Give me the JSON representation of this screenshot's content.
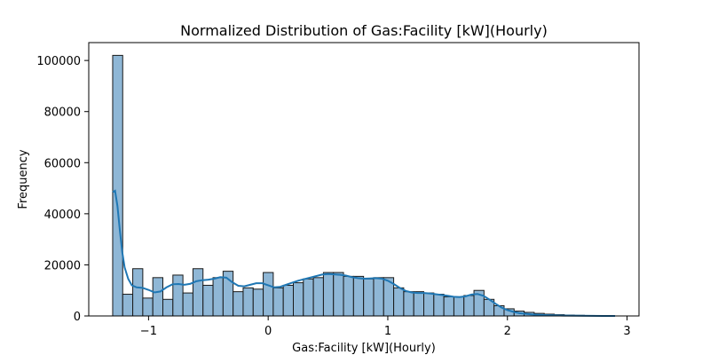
{
  "chart_data": {
    "type": "bar",
    "title": "Normalized Distribution of Gas:Facility [kW](Hourly)",
    "xlabel": "Gas:Facility [kW](Hourly)",
    "ylabel": "Frequency",
    "xlim": [
      -1.5,
      3.1
    ],
    "ylim": [
      0,
      107000
    ],
    "x_ticks": [
      -1,
      0,
      1,
      2,
      3
    ],
    "x_tick_labels": [
      "−1",
      "0",
      "1",
      "2",
      "3"
    ],
    "y_ticks": [
      0,
      20000,
      40000,
      60000,
      80000,
      100000
    ],
    "y_tick_labels": [
      "0",
      "20000",
      "40000",
      "60000",
      "80000",
      "100000"
    ],
    "grid": false,
    "bin_start": -1.3,
    "bin_width": 0.0839,
    "values": [
      102000,
      8500,
      18500,
      7000,
      15000,
      6500,
      16000,
      9000,
      18500,
      12000,
      15000,
      17500,
      9500,
      11000,
      10500,
      17000,
      11000,
      12000,
      13000,
      14500,
      15000,
      17000,
      17000,
      15500,
      15500,
      14500,
      15000,
      15000,
      11000,
      9500,
      9500,
      9000,
      8500,
      7500,
      7500,
      8000,
      10000,
      6500,
      4000,
      2800,
      1900,
      1400,
      1000,
      700,
      500,
      350,
      250,
      180,
      120,
      80
    ],
    "kde": {
      "x": [
        -1.3,
        -1.28,
        -1.26,
        -1.24,
        -1.22,
        -1.2,
        -1.17,
        -1.14,
        -1.1,
        -1.05,
        -1.0,
        -0.95,
        -0.9,
        -0.85,
        -0.8,
        -0.75,
        -0.7,
        -0.65,
        -0.6,
        -0.55,
        -0.5,
        -0.45,
        -0.4,
        -0.35,
        -0.3,
        -0.25,
        -0.2,
        -0.15,
        -0.1,
        -0.05,
        0.0,
        0.05,
        0.1,
        0.15,
        0.2,
        0.25,
        0.3,
        0.35,
        0.4,
        0.45,
        0.5,
        0.55,
        0.6,
        0.65,
        0.7,
        0.75,
        0.8,
        0.85,
        0.9,
        0.95,
        1.0,
        1.05,
        1.1,
        1.15,
        1.2,
        1.25,
        1.3,
        1.35,
        1.4,
        1.45,
        1.5,
        1.55,
        1.6,
        1.65,
        1.7,
        1.75,
        1.8,
        1.85,
        1.9,
        1.95,
        2.0,
        2.05,
        2.1,
        2.2,
        2.3,
        2.4,
        2.5,
        2.6,
        2.7,
        2.8,
        2.9
      ],
      "y": [
        48500,
        49000,
        43000,
        33500,
        25000,
        19000,
        14500,
        12000,
        11200,
        11000,
        10200,
        9200,
        9600,
        11200,
        12400,
        12500,
        12200,
        12600,
        13600,
        14000,
        14200,
        14600,
        15200,
        15000,
        13200,
        11800,
        11600,
        12200,
        12800,
        12800,
        12000,
        11200,
        11400,
        12200,
        13000,
        13800,
        14400,
        15000,
        15600,
        16200,
        16400,
        16300,
        16100,
        15800,
        15200,
        14800,
        14600,
        14700,
        14800,
        14600,
        13800,
        12500,
        11000,
        9800,
        9200,
        9000,
        9000,
        8800,
        8500,
        8200,
        7900,
        7500,
        7400,
        7700,
        8400,
        8600,
        7900,
        6400,
        4800,
        3300,
        2300,
        1600,
        1100,
        600,
        350,
        200,
        120,
        70,
        40,
        20,
        10
      ]
    },
    "colors": {
      "bar_fill": "#8fb7d6",
      "bar_edge": "#1a1a1a",
      "kde_line": "#1f77b4"
    }
  }
}
